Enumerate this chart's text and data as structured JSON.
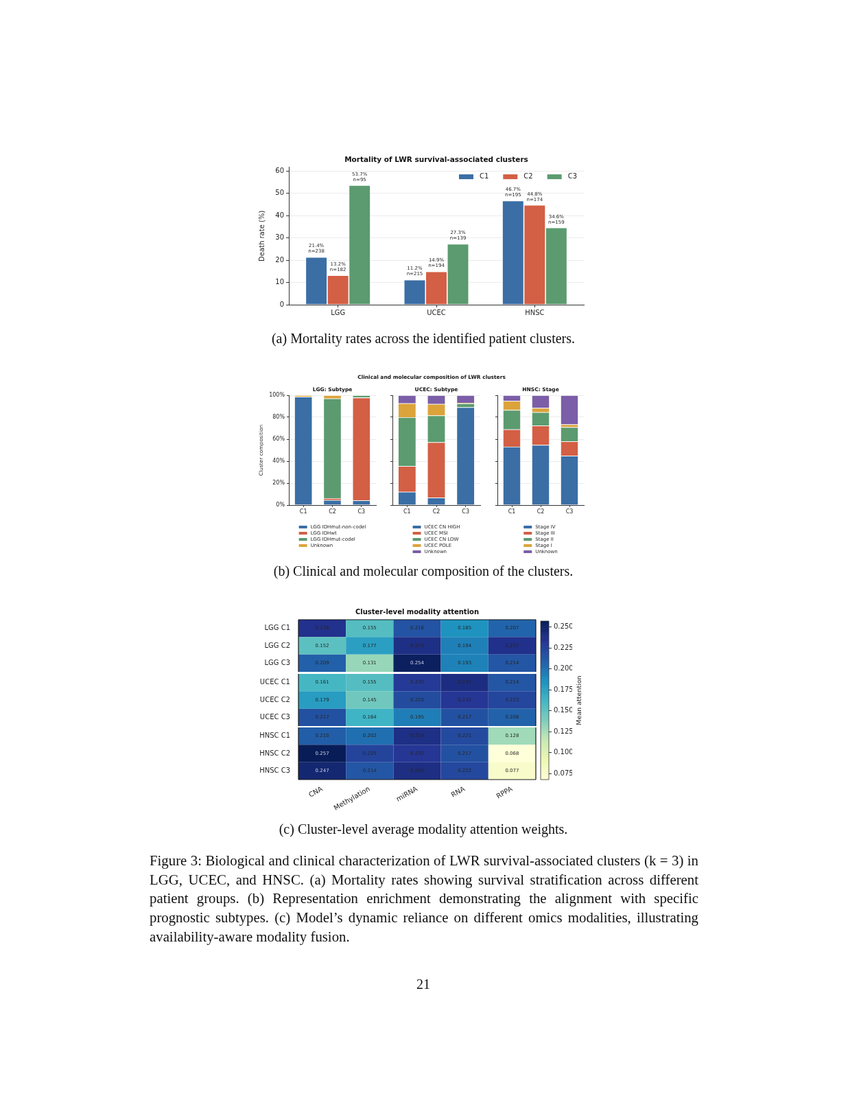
{
  "chart_data": [
    {
      "type": "bar",
      "title": "Mortality of LWR survival-associated clusters",
      "ylabel": "Death rate (%)",
      "categories": [
        "LGG",
        "UCEC",
        "HNSC"
      ],
      "series": [
        {
          "name": "C1",
          "color": "#3a6ea5",
          "values": [
            21.4,
            11.2,
            46.7
          ],
          "value_labels": [
            "21.4%\nn=238",
            "11.2%\nn=215",
            "46.7%\nn=195"
          ]
        },
        {
          "name": "C2",
          "color": "#d35f45",
          "values": [
            13.2,
            14.9,
            44.8
          ],
          "value_labels": [
            "13.2%\nn=182",
            "14.9%\nn=194",
            "44.8%\nn=174"
          ]
        },
        {
          "name": "C3",
          "color": "#5b9b6f",
          "values": [
            53.7,
            27.3,
            34.6
          ],
          "value_labels": [
            "53.7%\nn=95",
            "27.3%\nn=139",
            "34.6%\nn=159"
          ]
        }
      ],
      "ylim": [
        0,
        61.8
      ],
      "yticks": [
        0,
        10,
        20,
        30,
        40,
        50,
        60
      ],
      "grid": "y",
      "legend": "top right",
      "annotations": [
        "(a) Mortality rates across the identified patient clusters."
      ]
    },
    {
      "type": "bar",
      "stacked": true,
      "title": "LGG: Subtype",
      "ylabel": "Cluster composition",
      "categories": [
        "C1",
        "C2",
        "C3"
      ],
      "series": [
        {
          "name": "LGG IDHmut-non-codel",
          "color": "#3a6ea5",
          "values": [
            98.7,
            4.6,
            4.2
          ]
        },
        {
          "name": "LGG IDHwt",
          "color": "#d35f45",
          "values": [
            0,
            1.7,
            93.7
          ]
        },
        {
          "name": "LGG IDHmut-codel",
          "color": "#5b9b6f",
          "values": [
            0,
            90.8,
            2.1
          ]
        },
        {
          "name": "Unknown",
          "color": "#dca33b",
          "values": [
            1.3,
            2.9,
            0
          ]
        }
      ],
      "ylim": [
        0,
        100
      ],
      "yticks": [
        {
          "value": 0,
          "label": "0%"
        },
        {
          "value": 20,
          "label": "20%"
        },
        {
          "value": 40,
          "label": "40%"
        },
        {
          "value": 60,
          "label": "60%"
        },
        {
          "value": 80,
          "label": "80%"
        },
        {
          "value": 100,
          "label": "100%"
        }
      ],
      "grid": "y",
      "legend": "bottom",
      "annotations": [
        "Clinical and molecular composition of LWR clusters",
        "(b) Clinical and molecular composition of the clusters."
      ]
    },
    {
      "type": "bar",
      "stacked": true,
      "title": "UCEC: Subtype",
      "categories": [
        "C1",
        "C2",
        "C3"
      ],
      "series": [
        {
          "name": "UCEC CN HIGH",
          "color": "#3a6ea5",
          "values": [
            12.1,
            6.7,
            89.1
          ]
        },
        {
          "name": "UCEC MSI",
          "color": "#d35f45",
          "values": [
            23.4,
            50.5,
            0
          ]
        },
        {
          "name": "UCEC CN LOW",
          "color": "#5b9b6f",
          "values": [
            44.5,
            24.4,
            3.4
          ]
        },
        {
          "name": "UCEC POLE",
          "color": "#dca33b",
          "values": [
            12.7,
            10.5,
            0.6
          ]
        },
        {
          "name": "Unknown",
          "color": "#7b5ea7",
          "values": [
            7.3,
            7.9,
            6.9
          ]
        }
      ],
      "ylim": [
        0,
        100
      ],
      "yticks": [
        0,
        20,
        40,
        60,
        80,
        100
      ],
      "grid": "y",
      "legend": "bottom",
      "tick_labels": "x"
    },
    {
      "type": "bar",
      "stacked": true,
      "title": "HNSC: Stage",
      "categories": [
        "C1",
        "C2",
        "C3"
      ],
      "series": [
        {
          "name": "Stage IV",
          "color": "#3a6ea5",
          "values": [
            53.2,
            54.7,
            44.9
          ]
        },
        {
          "name": "Stage III",
          "color": "#d35f45",
          "values": [
            15.7,
            17.7,
            13.1
          ]
        },
        {
          "name": "Stage II",
          "color": "#5b9b6f",
          "values": [
            17.7,
            12.2,
            13.0
          ]
        },
        {
          "name": "Stage I",
          "color": "#dca33b",
          "values": [
            8.2,
            3.9,
            2.5
          ]
        },
        {
          "name": "Unknown",
          "color": "#7b5ea7",
          "values": [
            5.2,
            11.5,
            26.5
          ]
        }
      ],
      "ylim": [
        0,
        100
      ],
      "yticks": [
        0,
        20,
        40,
        60,
        80,
        100
      ],
      "grid": "y",
      "legend": "bottom",
      "tick_labels": "x"
    },
    {
      "type": "heatmap",
      "title": "Cluster-level modality attention",
      "categories": [
        null,
        null,
        null,
        null,
        null
      ],
      "y_categories": [
        "LGG C1",
        "LGG C2",
        "LGG C3"
      ],
      "cells": [
        [
          0.236,
          0.155,
          0.216,
          0.185,
          0.207
        ],
        [
          0.152,
          0.177,
          0.239,
          0.194,
          0.237
        ],
        [
          0.209,
          0.131,
          0.254,
          0.193,
          0.214
        ]
      ],
      "cell_labels": [
        [
          "0.236",
          "0.155",
          "0.216",
          "0.185",
          "0.207"
        ],
        [
          "0.152",
          "0.177",
          "0.239",
          "0.194",
          "0.237"
        ],
        [
          "0.209",
          "0.131",
          "0.254",
          "0.193",
          "0.214"
        ]
      ],
      "clim": [
        0.068,
        0.257
      ],
      "cticks": [
        0.075,
        {
          "value": 0.1,
          "label": "0.100"
        },
        0.125,
        {
          "value": 0.15,
          "label": "0.150"
        },
        0.175,
        {
          "value": 0.2,
          "label": "0.200"
        },
        0.225,
        {
          "value": 0.25,
          "label": "0.250"
        }
      ],
      "clabel": "Mean attention"
    },
    {
      "type": "heatmap",
      "categories": [
        null,
        null,
        null,
        null,
        null
      ],
      "y_categories": [
        "UCEC C1",
        "UCEC C2",
        "UCEC C3"
      ],
      "cells": [
        [
          0.161,
          0.155,
          0.23,
          0.241,
          0.214
        ],
        [
          0.179,
          0.145,
          0.22,
          0.232,
          0.223
        ],
        [
          0.217,
          0.164,
          0.195,
          0.217,
          0.208
        ]
      ],
      "cell_labels": [
        [
          "0.161",
          "0.155",
          "0.230",
          "0.241",
          "0.214"
        ],
        [
          "0.179",
          "0.145",
          "0.220",
          "0.232",
          "0.223"
        ],
        [
          "0.217",
          "0.164",
          "0.195",
          "0.217",
          "0.208"
        ]
      ]
    },
    {
      "type": "heatmap",
      "categories": [
        "CNA",
        "Methylation",
        "miRNA",
        "RNA",
        "RPPA"
      ],
      "y_categories": [
        "HNSC C1",
        "HNSC C2",
        "HNSC C3"
      ],
      "cells": [
        [
          0.21,
          0.202,
          0.239,
          0.221,
          0.128
        ],
        [
          0.257,
          0.225,
          0.232,
          0.217,
          0.068
        ],
        [
          0.247,
          0.214,
          0.24,
          0.222,
          0.077
        ]
      ],
      "cell_labels": [
        [
          "0.210",
          "0.202",
          "0.239",
          "0.221",
          "0.128"
        ],
        [
          "0.257",
          "0.225",
          "0.232",
          "0.217",
          "0.068"
        ],
        [
          "0.247",
          "0.214",
          "0.240",
          "0.222",
          "0.077"
        ]
      ],
      "annotations": [
        "(c) Cluster-level average modality attention weights.",
        "Figure 3: Biological and clinical characterization of LWR survival-associated clusters (k = 3) in LGG, UCEC, and HNSC. (a) Mortality rates showing survival stratification across different patient groups. (b) Representation enrichment demonstrating the alignment with specific prognostic subtypes. (c) Model’s dynamic reliance on different omics modalities, illustrating availability-aware modality fusion.",
        "21"
      ]
    }
  ]
}
